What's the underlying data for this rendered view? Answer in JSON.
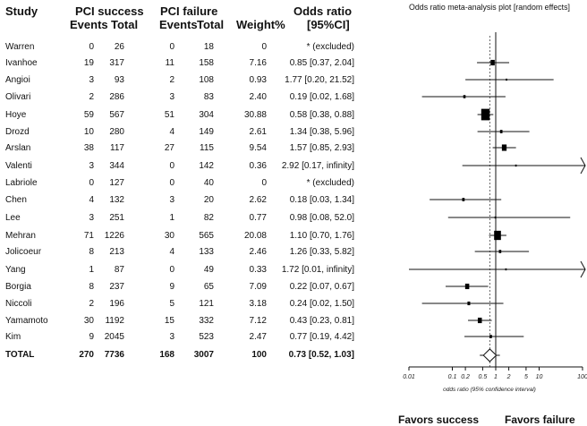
{
  "headers": {
    "study": "Study",
    "success_group": "PCI success",
    "failure_group": "PCI failure",
    "events": "Events",
    "total": "Total",
    "weight": "Weight%",
    "or_line1": "Odds ratio",
    "or_line2": "[95%CI]"
  },
  "rows": [
    {
      "study": "Warren",
      "s_events": "0",
      "s_total": "26",
      "f_events": "0",
      "f_total": "18",
      "weight": "0",
      "or_text": "* (excluded)"
    },
    {
      "study": "Ivanhoe",
      "s_events": "19",
      "s_total": "317",
      "f_events": "11",
      "f_total": "158",
      "weight": "7.16",
      "or_text": "0.85 [0.37, 2.04]"
    },
    {
      "study": "Angioi",
      "s_events": "3",
      "s_total": "93",
      "f_events": "2",
      "f_total": "108",
      "weight": "0.93",
      "or_text": "1.77 [0.20, 21.52]"
    },
    {
      "study": "Olivari",
      "s_events": "2",
      "s_total": "286",
      "f_events": "3",
      "f_total": "83",
      "weight": "2.40",
      "or_text": "0.19 [0.02, 1.68]"
    },
    {
      "study": "Hoye",
      "s_events": "59",
      "s_total": "567",
      "f_events": "51",
      "f_total": "304",
      "weight": "30.88",
      "or_text": "0.58 [0.38, 0.88]"
    },
    {
      "study": "Drozd",
      "s_events": "10",
      "s_total": "280",
      "f_events": "4",
      "f_total": "149",
      "weight": "2.61",
      "or_text": "1.34 [0.38, 5.96]"
    },
    {
      "study": "Arslan",
      "s_events": "38",
      "s_total": "117",
      "f_events": "27",
      "f_total": "115",
      "weight": "9.54",
      "or_text": "1.57 [0.85, 2.93]"
    },
    {
      "study": "Valenti",
      "s_events": "3",
      "s_total": "344",
      "f_events": "0",
      "f_total": "142",
      "weight": "0.36",
      "or_text": "2.92 [0.17, infinity]"
    },
    {
      "study": "Labriole",
      "s_events": "0",
      "s_total": "127",
      "f_events": "0",
      "f_total": "40",
      "weight": "0",
      "or_text": "* (excluded)"
    },
    {
      "study": "Chen",
      "s_events": "4",
      "s_total": "132",
      "f_events": "3",
      "f_total": "20",
      "weight": "2.62",
      "or_text": "0.18 [0.03, 1.34]"
    },
    {
      "study": "Lee",
      "s_events": "3",
      "s_total": "251",
      "f_events": "1",
      "f_total": "82",
      "weight": "0.77",
      "or_text": "0.98 [0.08, 52.0]"
    },
    {
      "study": "Mehran",
      "s_events": "71",
      "s_total": "1226",
      "f_events": "30",
      "f_total": "565",
      "weight": "20.08",
      "or_text": "1.10 [0.70, 1.76]"
    },
    {
      "study": "Jolicoeur",
      "s_events": "8",
      "s_total": "213",
      "f_events": "4",
      "f_total": "133",
      "weight": "2.46",
      "or_text": "1.26 [0.33, 5.82]"
    },
    {
      "study": "Yang",
      "s_events": "1",
      "s_total": "87",
      "f_events": "0",
      "f_total": "49",
      "weight": "0.33",
      "or_text": "1.72 [0.01, infinity]"
    },
    {
      "study": "Borgia",
      "s_events": "8",
      "s_total": "237",
      "f_events": "9",
      "f_total": "65",
      "weight": "7.09",
      "or_text": "0.22 [0.07, 0.67]"
    },
    {
      "study": "Niccoli",
      "s_events": "2",
      "s_total": "196",
      "f_events": "5",
      "f_total": "121",
      "weight": "3.18",
      "or_text": "0.24 [0.02, 1.50]"
    },
    {
      "study": "Yamamoto",
      "s_events": "30",
      "s_total": "1192",
      "f_events": "15",
      "f_total": "332",
      "weight": "7.12",
      "or_text": "0.43 [0.23, 0.81]"
    },
    {
      "study": "Kim",
      "s_events": "9",
      "s_total": "2045",
      "f_events": "3",
      "f_total": "523",
      "weight": "2.47",
      "or_text": "0.77 [0.19, 4.42]"
    }
  ],
  "total_row": {
    "study": "TOTAL",
    "s_events": "270",
    "s_total": "7736",
    "f_events": "168",
    "f_total": "3007",
    "weight": "100",
    "or_text": "0.73 [0.52, 1.03]"
  },
  "favors": {
    "left": "Favors  success",
    "right": "Favors  failure"
  },
  "chart_data": {
    "type": "forest",
    "title": "Odds ratio meta-analysis plot [random effects]",
    "xlabel": "odds ratio (95% confidence interval)",
    "xscale": "log",
    "xlim": [
      0.01,
      100
    ],
    "xticks": [
      0.01,
      0.1,
      0.2,
      0.5,
      1,
      2,
      5,
      10,
      100
    ],
    "xtick_labels": [
      "0.01",
      "0.1",
      "0.2",
      "0.5",
      "1",
      "2",
      "5",
      "10",
      "100"
    ],
    "reference_line": 1,
    "pooled_line": 0.73,
    "studies": [
      {
        "name": "Warren",
        "or": null,
        "lo": null,
        "hi": null,
        "weight": 0
      },
      {
        "name": "Ivanhoe",
        "or": 0.85,
        "lo": 0.37,
        "hi": 2.04,
        "weight": 7.16
      },
      {
        "name": "Angioi",
        "or": 1.77,
        "lo": 0.2,
        "hi": 21.52,
        "weight": 0.93
      },
      {
        "name": "Olivari",
        "or": 0.19,
        "lo": 0.02,
        "hi": 1.68,
        "weight": 2.4
      },
      {
        "name": "Hoye",
        "or": 0.58,
        "lo": 0.38,
        "hi": 0.88,
        "weight": 30.88
      },
      {
        "name": "Drozd",
        "or": 1.34,
        "lo": 0.38,
        "hi": 5.96,
        "weight": 2.61
      },
      {
        "name": "Arslan",
        "or": 1.57,
        "lo": 0.85,
        "hi": 2.93,
        "weight": 9.54
      },
      {
        "name": "Valenti",
        "or": 2.92,
        "lo": 0.17,
        "hi": "infinity",
        "weight": 0.36
      },
      {
        "name": "Labriole",
        "or": null,
        "lo": null,
        "hi": null,
        "weight": 0
      },
      {
        "name": "Chen",
        "or": 0.18,
        "lo": 0.03,
        "hi": 1.34,
        "weight": 2.62
      },
      {
        "name": "Lee",
        "or": 0.98,
        "lo": 0.08,
        "hi": 52.0,
        "weight": 0.77
      },
      {
        "name": "Mehran",
        "or": 1.1,
        "lo": 0.7,
        "hi": 1.76,
        "weight": 20.08
      },
      {
        "name": "Jolicoeur",
        "or": 1.26,
        "lo": 0.33,
        "hi": 5.82,
        "weight": 2.46
      },
      {
        "name": "Yang",
        "or": 1.72,
        "lo": 0.01,
        "hi": "infinity",
        "weight": 0.33
      },
      {
        "name": "Borgia",
        "or": 0.22,
        "lo": 0.07,
        "hi": 0.67,
        "weight": 7.09
      },
      {
        "name": "Niccoli",
        "or": 0.24,
        "lo": 0.02,
        "hi": 1.5,
        "weight": 3.18
      },
      {
        "name": "Yamamoto",
        "or": 0.43,
        "lo": 0.23,
        "hi": 0.81,
        "weight": 7.12
      },
      {
        "name": "Kim",
        "or": 0.77,
        "lo": 0.19,
        "hi": 4.42,
        "weight": 2.47
      }
    ],
    "pooled": {
      "or": 0.73,
      "lo": 0.52,
      "hi": 1.03
    }
  }
}
